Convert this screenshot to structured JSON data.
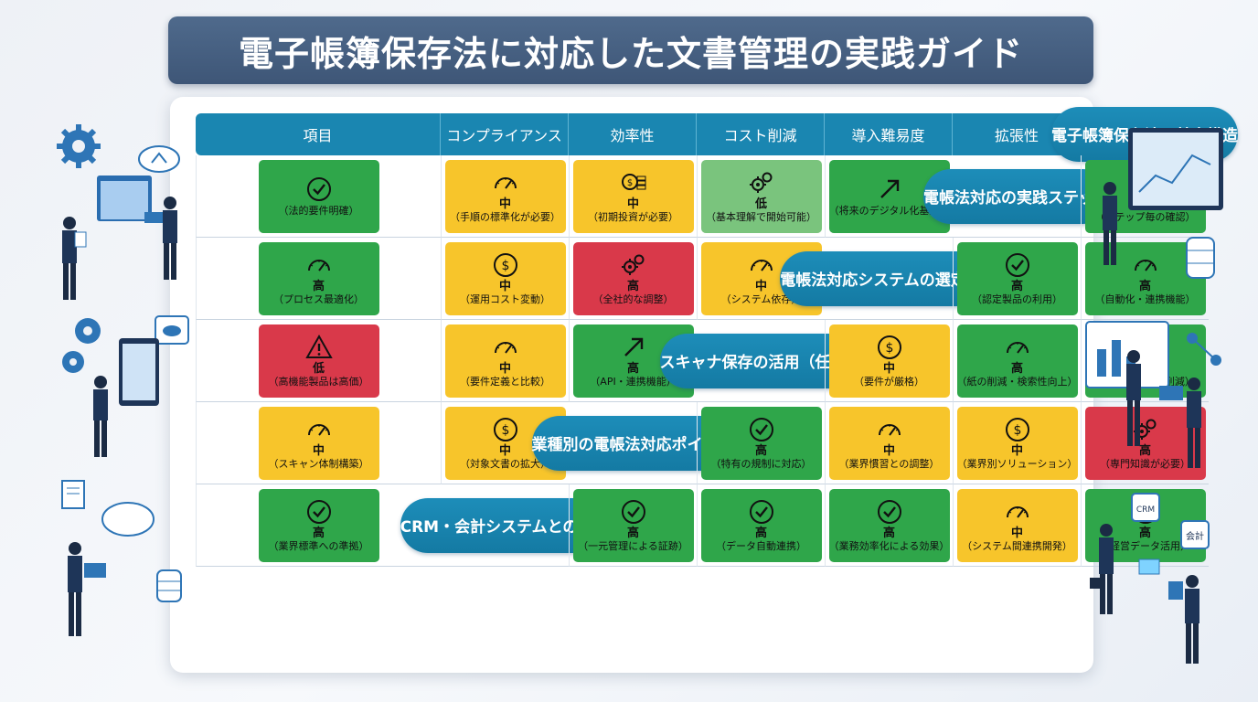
{
  "title": "電子帳簿保存法に対応した文書管理の実践ガイド",
  "headers": [
    "項目",
    "コンプライアンス",
    "効率性",
    "コスト削減",
    "導入難易度",
    "拡張性"
  ],
  "rows": [
    {
      "label": "電子帳簿保存法の基本構造",
      "cells": [
        {
          "color": "green",
          "icon": "check-icon",
          "level": "",
          "note": "（法的要件明確）"
        },
        {
          "color": "yellow",
          "icon": "gauge-icon",
          "level": "中",
          "note": "（手順の標準化が必要）"
        },
        {
          "color": "yellow",
          "icon": "coins-icon",
          "level": "中",
          "note": "（初期投資が必要）"
        },
        {
          "color": "lightgreen",
          "icon": "gears-icon",
          "level": "低",
          "note": "（基本理解で開始可能）"
        },
        {
          "color": "green",
          "icon": "arrow-up-right-icon",
          "level": "",
          "note": "（将来のデジタル化基盤）"
        }
      ]
    },
    {
      "label": "電帳法対応の実践ステップ",
      "cells": [
        {
          "color": "green",
          "icon": "check-icon",
          "level": "高",
          "note": "（ステップ毎の確認）"
        },
        {
          "color": "green",
          "icon": "gauge-icon",
          "level": "高",
          "note": "（プロセス最適化）"
        },
        {
          "color": "yellow",
          "icon": "dollar-icon",
          "level": "中",
          "note": "（運用コスト変動）"
        },
        {
          "color": "red",
          "icon": "gears-icon",
          "level": "高",
          "note": "（全社的な調整）"
        },
        {
          "color": "yellow",
          "icon": "gauge-icon",
          "level": "中",
          "note": "（システム依存）"
        }
      ]
    },
    {
      "label": "電帳法対応システムの選定基準",
      "cells": [
        {
          "color": "green",
          "icon": "check-icon",
          "level": "高",
          "note": "（認定製品の利用）"
        },
        {
          "color": "green",
          "icon": "gauge-icon",
          "level": "高",
          "note": "（自動化・連携機能）"
        },
        {
          "color": "red",
          "icon": "warning-icon",
          "level": "低",
          "note": "（高機能製品は高価）"
        },
        {
          "color": "yellow",
          "icon": "gauge-icon",
          "level": "中",
          "note": "（要件定義と比較）"
        },
        {
          "color": "green",
          "icon": "arrow-up-right-icon",
          "level": "高",
          "note": "（API・連携機能）"
        }
      ]
    },
    {
      "label": "スキャナ保存の活用（任意）",
      "cells": [
        {
          "color": "yellow",
          "icon": "dollar-icon",
          "level": "中",
          "note": "（要件が厳格）"
        },
        {
          "color": "green",
          "icon": "gauge-icon",
          "level": "高",
          "note": "（紙の削減・検索性向上）"
        },
        {
          "color": "green",
          "icon": "check-icon",
          "level": "高",
          "note": "（保管スペース削減）"
        },
        {
          "color": "yellow",
          "icon": "gauge-icon",
          "level": "中",
          "note": "（スキャン体制構築）"
        },
        {
          "color": "yellow",
          "icon": "dollar-icon",
          "level": "中",
          "note": "（対象文書の拡大）"
        }
      ]
    },
    {
      "label": "業種別の電帳法対応ポイント",
      "cells": [
        {
          "color": "green",
          "icon": "check-icon",
          "level": "高",
          "note": "（特有の規制に対応）"
        },
        {
          "color": "yellow",
          "icon": "gauge-icon",
          "level": "中",
          "note": "（業界慣習との調整）"
        },
        {
          "color": "yellow",
          "icon": "dollar-icon",
          "level": "中",
          "note": "（業界別ソリューション）"
        },
        {
          "color": "red",
          "icon": "gears-icon",
          "level": "高",
          "note": "（専門知識が必要）"
        },
        {
          "color": "green",
          "icon": "check-icon",
          "level": "高",
          "note": "（業界標準への準拠）"
        }
      ]
    },
    {
      "label": "CRM・会計システムとの連携",
      "cells": [
        {
          "color": "green",
          "icon": "check-icon",
          "level": "高",
          "note": "（一元管理による証跡）"
        },
        {
          "color": "green",
          "icon": "check-icon",
          "level": "高",
          "note": "（データ自動連携）"
        },
        {
          "color": "green",
          "icon": "check-icon",
          "level": "高",
          "note": "（業務効率化による効果）"
        },
        {
          "color": "yellow",
          "icon": "gauge-icon",
          "level": "中",
          "note": "（システム間連携開発）"
        },
        {
          "color": "green",
          "icon": "check-icon",
          "level": "高",
          "note": "（経営データ活用）"
        }
      ]
    }
  ],
  "illustration": {
    "badge_crm": "CRM",
    "badge_kaikei": "会計"
  }
}
